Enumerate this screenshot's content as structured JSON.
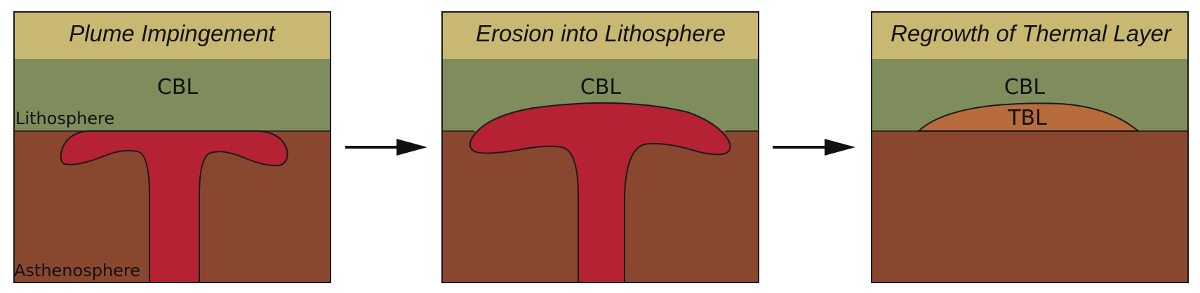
{
  "colors": {
    "title_band": "#c8b872",
    "lithosphere": "#7f8c5c",
    "asthenosphere": "#8a4730",
    "plume": "#b52233",
    "thermal_layer": "#b86c3c",
    "outline": "#1a1a1a",
    "arrow": "#111111"
  },
  "panels": [
    {
      "title": "Plume Impingement",
      "cbl_label": "CBL",
      "lithosphere_label": "Lithosphere",
      "asthenosphere_label": "Asthenosphere"
    },
    {
      "title": "Erosion into Lithosphere",
      "cbl_label": "CBL"
    },
    {
      "title": "Regrowth of Thermal Layer",
      "cbl_label": "CBL",
      "tbl_label": "TBL"
    }
  ],
  "arrows": [
    {
      "from": "Plume Impingement",
      "to": "Erosion into Lithosphere",
      "icon": "right-arrow-icon"
    },
    {
      "from": "Erosion into Lithosphere",
      "to": "Regrowth of Thermal Layer",
      "icon": "right-arrow-icon"
    }
  ]
}
